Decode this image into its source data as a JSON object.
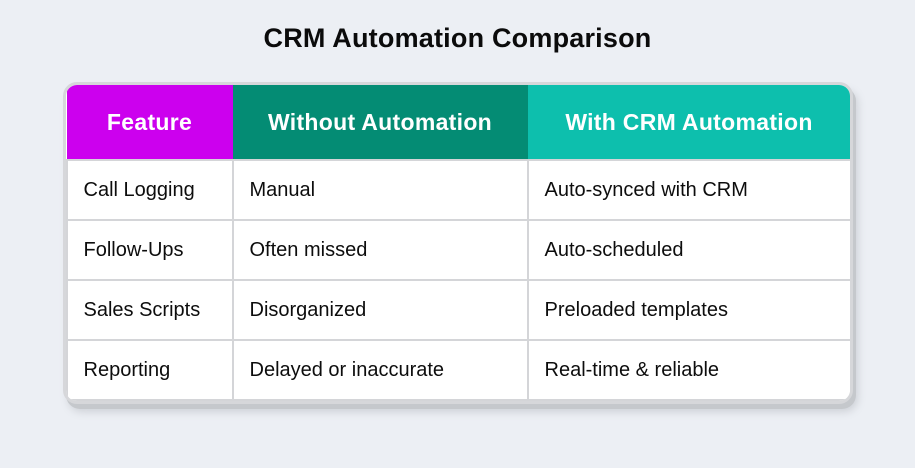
{
  "page": {
    "title": "CRM Automation Comparison",
    "background_color": "#ECEFF4"
  },
  "colors": {
    "header_feature_bg": "#CC00EE",
    "header_without_bg": "#048C74",
    "header_with_bg": "#0DBFAD",
    "header_text": "#FFFFFF",
    "body_text": "#0D0D0D",
    "grid_border": "#D4D5D8",
    "card_border": "#D6D7DA",
    "card_shadow": "#C5C8CC"
  },
  "table": {
    "columns": [
      {
        "label": "Feature"
      },
      {
        "label": "Without Automation"
      },
      {
        "label": "With CRM Automation"
      }
    ],
    "rows": [
      {
        "feature": "Call Logging",
        "without": "Manual",
        "with": "Auto-synced with CRM"
      },
      {
        "feature": "Follow-Ups",
        "without": "Often missed",
        "with": "Auto-scheduled"
      },
      {
        "feature": "Sales Scripts",
        "without": "Disorganized",
        "with": "Preloaded templates"
      },
      {
        "feature": "Reporting",
        "without": "Delayed or inaccurate",
        "with": "Real-time & reliable"
      }
    ]
  },
  "chart_data": {
    "type": "table",
    "title": "CRM Automation Comparison",
    "columns": [
      "Feature",
      "Without Automation",
      "With CRM Automation"
    ],
    "rows": [
      [
        "Call Logging",
        "Manual",
        "Auto-synced with CRM"
      ],
      [
        "Follow-Ups",
        "Often missed",
        "Auto-scheduled"
      ],
      [
        "Sales Scripts",
        "Disorganized",
        "Preloaded templates"
      ],
      [
        "Reporting",
        "Delayed or inaccurate",
        "Real-time & reliable"
      ]
    ],
    "legend_position": "none",
    "grid": true
  }
}
